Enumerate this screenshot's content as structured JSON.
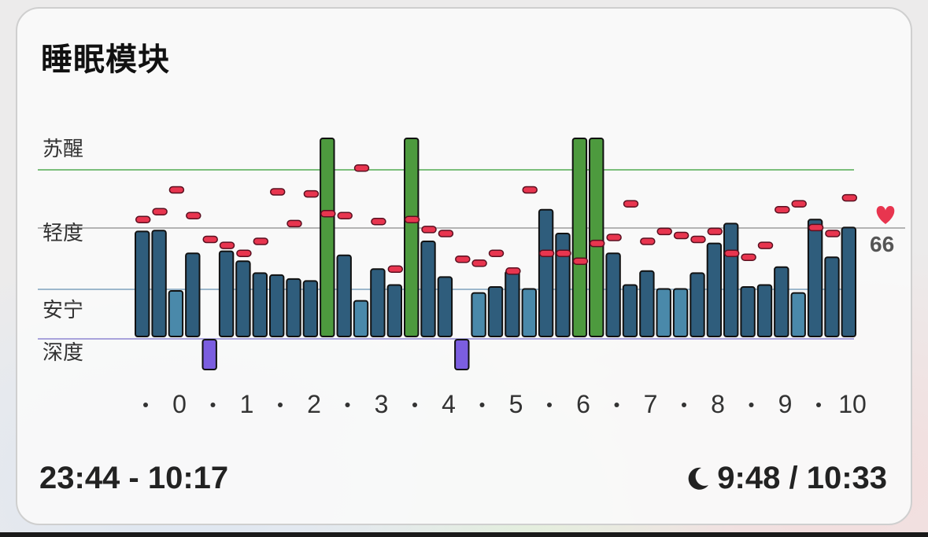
{
  "card": {
    "title": "睡眠模块",
    "time_range": "23:44 - 10:17",
    "duration": "9:48 / 10:33",
    "duration_icon": "moon-icon"
  },
  "chart_data": {
    "type": "bar",
    "y_categories": [
      "深度",
      "安宁",
      "轻度",
      "苏醒"
    ],
    "x_ticks": [
      "0",
      "1",
      "2",
      "3",
      "4",
      "5",
      "6",
      "7",
      "8",
      "9",
      "10"
    ],
    "heart_rate_reference": "66",
    "heart_icon": "heart-icon",
    "colors": {
      "deep": "#7b5ee0",
      "light": "#2f5d7c",
      "restful": "#4a89aa",
      "awake": "#4d9a3e",
      "heart_rate": "#e8354f",
      "awake_line": "#7bbf7b",
      "restful_line": "#9db8cc",
      "deep_line": "#a9a3dc",
      "reference_line": "#b4b4b4"
    },
    "segments": [
      {
        "stage": "light",
        "level": 0.53
      },
      {
        "stage": "light",
        "level": 0.535
      },
      {
        "stage": "restful",
        "level": 0.23
      },
      {
        "stage": "light",
        "level": 0.42
      },
      {
        "stage": "deep",
        "level": -0.15
      },
      {
        "stage": "light",
        "level": 0.43
      },
      {
        "stage": "light",
        "level": 0.38
      },
      {
        "stage": "light",
        "level": 0.32
      },
      {
        "stage": "light",
        "level": 0.31
      },
      {
        "stage": "light",
        "level": 0.29
      },
      {
        "stage": "light",
        "level": 0.28
      },
      {
        "stage": "awake",
        "level": 1.0
      },
      {
        "stage": "light",
        "level": 0.41
      },
      {
        "stage": "restful",
        "level": 0.18
      },
      {
        "stage": "light",
        "level": 0.34
      },
      {
        "stage": "light",
        "level": 0.26
      },
      {
        "stage": "awake",
        "level": 1.0
      },
      {
        "stage": "light",
        "level": 0.48
      },
      {
        "stage": "light",
        "level": 0.3
      },
      {
        "stage": "deep",
        "level": -0.15
      },
      {
        "stage": "restful",
        "level": 0.22
      },
      {
        "stage": "light",
        "level": 0.25
      },
      {
        "stage": "light",
        "level": 0.33
      },
      {
        "stage": "restful",
        "level": 0.24
      },
      {
        "stage": "light",
        "level": 0.64
      },
      {
        "stage": "light",
        "level": 0.52
      },
      {
        "stage": "awake",
        "level": 1.0
      },
      {
        "stage": "awake",
        "level": 1.0
      },
      {
        "stage": "light",
        "level": 0.42
      },
      {
        "stage": "light",
        "level": 0.26
      },
      {
        "stage": "light",
        "level": 0.33
      },
      {
        "stage": "restful",
        "level": 0.24
      },
      {
        "stage": "restful",
        "level": 0.24
      },
      {
        "stage": "light",
        "level": 0.32
      },
      {
        "stage": "light",
        "level": 0.47
      },
      {
        "stage": "light",
        "level": 0.57
      },
      {
        "stage": "light",
        "level": 0.25
      },
      {
        "stage": "light",
        "level": 0.26
      },
      {
        "stage": "light",
        "level": 0.35
      },
      {
        "stage": "restful",
        "level": 0.22
      },
      {
        "stage": "light",
        "level": 0.59
      },
      {
        "stage": "light",
        "level": 0.4
      },
      {
        "stage": "light",
        "level": 0.55
      }
    ],
    "heart_rate": [
      0.59,
      0.63,
      0.74,
      0.61,
      0.49,
      0.46,
      0.42,
      0.48,
      0.73,
      0.57,
      0.72,
      0.62,
      0.61,
      0.85,
      0.58,
      0.34,
      0.59,
      0.54,
      0.52,
      0.39,
      0.37,
      0.42,
      0.33,
      0.74,
      0.42,
      0.42,
      0.38,
      0.47,
      0.5,
      0.67,
      0.48,
      0.53,
      0.51,
      0.49,
      0.53,
      0.42,
      0.4,
      0.46,
      0.64,
      0.67,
      0.55,
      0.52,
      0.7
    ]
  }
}
